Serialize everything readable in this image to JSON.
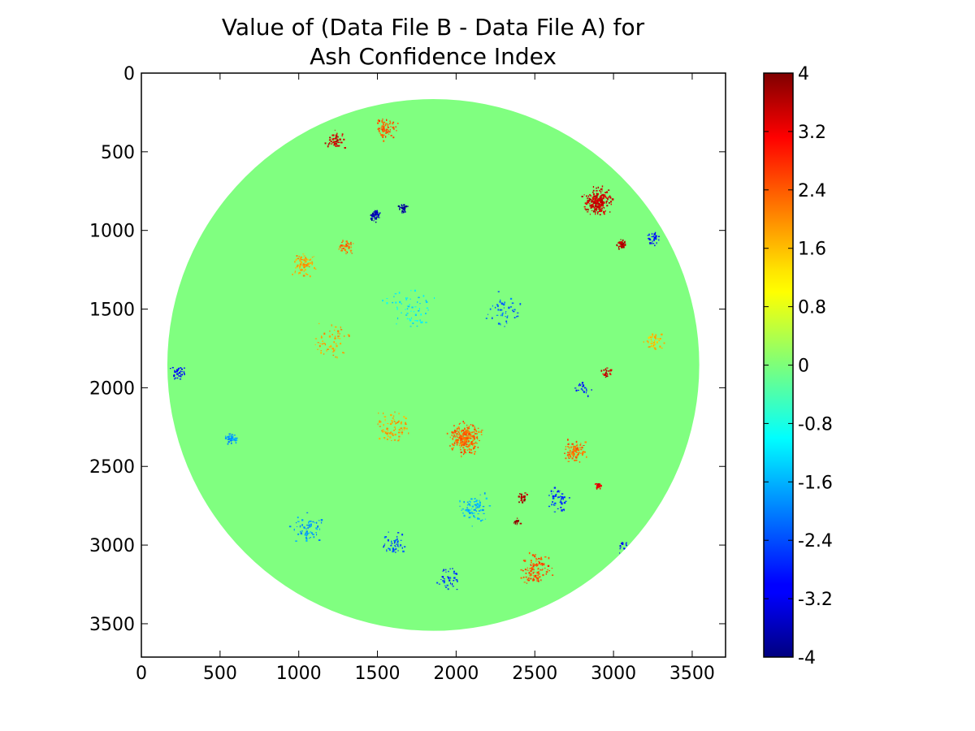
{
  "chart_data": {
    "type": "heatmap",
    "title_line1": "Value of (Data File B - Data File A) for",
    "title_line2": "Ash Confidence Index",
    "xlabel": "",
    "ylabel": "",
    "xlim": [
      0,
      3712
    ],
    "ylim": [
      3712,
      0
    ],
    "x_ticks": [
      0,
      500,
      1000,
      1500,
      2000,
      2500,
      3000,
      3500
    ],
    "y_ticks": [
      0,
      500,
      1000,
      1500,
      2000,
      2500,
      3000,
      3500
    ],
    "disk": {
      "center_x": 1855,
      "center_y": 1855,
      "radius": 1690
    },
    "background_value": 0,
    "colormap": "jet",
    "color_range": [
      -4,
      4
    ],
    "colorbar_ticks": [
      "4",
      "3.2",
      "2.4",
      "1.6",
      "0.8",
      "0",
      "-0.8",
      "-1.6",
      "-2.4",
      "-3.2",
      "-4"
    ],
    "colorbar_tick_values": [
      4,
      3.2,
      2.4,
      1.6,
      0.8,
      0,
      -0.8,
      -1.6,
      -2.4,
      -3.2,
      -4
    ],
    "grid": false,
    "difference_clusters": [
      {
        "x": 2900,
        "y": 810,
        "value": 3.4,
        "spread": 110,
        "count": 220
      },
      {
        "x": 3050,
        "y": 1080,
        "value": 3.6,
        "spread": 40,
        "count": 40
      },
      {
        "x": 2050,
        "y": 2320,
        "value": 2.2,
        "spread": 130,
        "count": 260
      },
      {
        "x": 2750,
        "y": 2400,
        "value": 2.2,
        "spread": 90,
        "count": 90
      },
      {
        "x": 2900,
        "y": 2620,
        "value": 3.2,
        "spread": 30,
        "count": 25
      },
      {
        "x": 2420,
        "y": 2690,
        "value": 3.6,
        "spread": 40,
        "count": 25
      },
      {
        "x": 2380,
        "y": 2850,
        "value": 3.8,
        "spread": 30,
        "count": 20
      },
      {
        "x": 2950,
        "y": 1900,
        "value": 3.4,
        "spread": 40,
        "count": 25
      },
      {
        "x": 1550,
        "y": 350,
        "value": 2.4,
        "spread": 90,
        "count": 80
      },
      {
        "x": 1230,
        "y": 420,
        "value": 3.4,
        "spread": 80,
        "count": 50
      },
      {
        "x": 1030,
        "y": 1200,
        "value": 1.8,
        "spread": 100,
        "count": 80
      },
      {
        "x": 1300,
        "y": 1100,
        "value": 2.2,
        "spread": 60,
        "count": 40
      },
      {
        "x": 2500,
        "y": 3150,
        "value": 2.4,
        "spread": 130,
        "count": 110
      },
      {
        "x": 1600,
        "y": 2250,
        "value": 1.8,
        "spread": 150,
        "count": 80
      },
      {
        "x": 3250,
        "y": 1700,
        "value": 1.6,
        "spread": 80,
        "count": 50
      },
      {
        "x": 1480,
        "y": 900,
        "value": -3.6,
        "spread": 50,
        "count": 45
      },
      {
        "x": 1660,
        "y": 860,
        "value": -3.8,
        "spread": 40,
        "count": 30
      },
      {
        "x": 570,
        "y": 2320,
        "value": -1.8,
        "spread": 50,
        "count": 40
      },
      {
        "x": 2100,
        "y": 2770,
        "value": -1.6,
        "spread": 120,
        "count": 80
      },
      {
        "x": 1050,
        "y": 2880,
        "value": -1.8,
        "spread": 120,
        "count": 70
      },
      {
        "x": 230,
        "y": 1900,
        "value": -3.0,
        "spread": 60,
        "count": 40
      },
      {
        "x": 3250,
        "y": 1050,
        "value": -2.8,
        "spread": 60,
        "count": 30
      },
      {
        "x": 2650,
        "y": 2700,
        "value": -2.6,
        "spread": 100,
        "count": 50
      },
      {
        "x": 1600,
        "y": 3000,
        "value": -2.4,
        "spread": 100,
        "count": 50
      },
      {
        "x": 1950,
        "y": 3200,
        "value": -2.6,
        "spread": 120,
        "count": 40
      },
      {
        "x": 3050,
        "y": 3000,
        "value": -3.0,
        "spread": 50,
        "count": 20
      },
      {
        "x": 2800,
        "y": 2000,
        "value": -2.8,
        "spread": 60,
        "count": 25
      },
      {
        "x": 1700,
        "y": 1500,
        "value": -1.2,
        "spread": 200,
        "count": 60
      },
      {
        "x": 2300,
        "y": 1500,
        "value": -2.2,
        "spread": 150,
        "count": 50
      },
      {
        "x": 1200,
        "y": 1700,
        "value": 1.8,
        "spread": 150,
        "count": 60
      }
    ]
  }
}
